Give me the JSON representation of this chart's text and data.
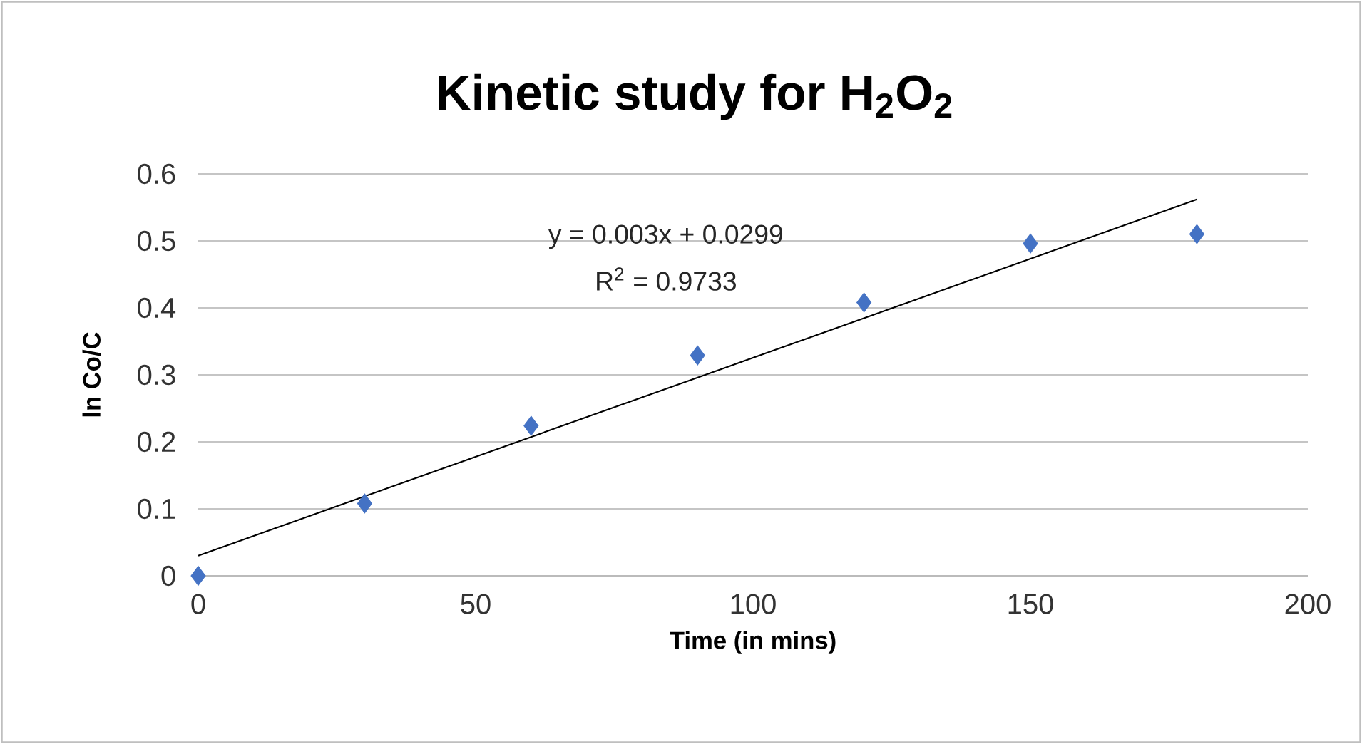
{
  "chart_data": {
    "type": "scatter",
    "title": "Kinetic study for H$_{2}$O$_{2}$",
    "xlabel": "Time (in mins)",
    "ylabel": "ln Co/C",
    "series": [
      {
        "color": "#4472c4",
        "marker": "diamond",
        "x": [
          0,
          30,
          60,
          90,
          120,
          150,
          180
        ],
        "values": [
          0,
          0.108,
          0.224,
          0.329,
          0.408,
          0.496,
          0.51
        ]
      },
      {
        "type": "line",
        "color": "#000000",
        "marker": "none",
        "line_style": "solid",
        "x": [
          0,
          180
        ],
        "values": [
          0.03,
          0.562
        ]
      }
    ],
    "annotations": [
      "y = 0.003x + 0.0299",
      "R$^{2}$ = 0.9733"
    ],
    "xlim": [
      0,
      200
    ],
    "xticks": [
      0,
      50,
      100,
      150,
      200
    ],
    "ylim": [
      0,
      0.6
    ],
    "yticks": [
      0,
      0.1,
      0.2,
      0.3,
      0.4,
      0.5,
      0.6
    ],
    "grid": "y"
  }
}
